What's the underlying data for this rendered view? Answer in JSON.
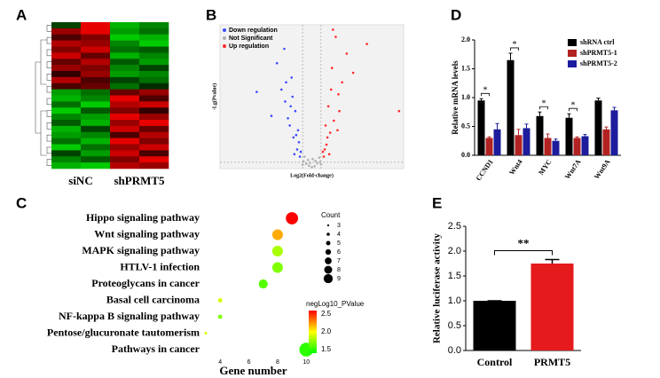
{
  "chart_data": [
    {
      "type": "heatmap",
      "label": "A",
      "column_groups": [
        "siNC",
        "shPRMT5"
      ],
      "low_color": "#00e000",
      "mid_color": "#000000",
      "high_color": "#ff0000",
      "values": [
        [
          -0.3,
          0.9,
          -0.8,
          -0.6
        ],
        [
          0.6,
          0.9,
          -0.7,
          -0.5
        ],
        [
          0.3,
          0.5,
          -0.9,
          -0.8
        ],
        [
          0.7,
          0.6,
          -0.6,
          -0.9
        ],
        [
          0.5,
          0.8,
          -0.5,
          -0.4
        ],
        [
          0.8,
          0.4,
          -0.8,
          -0.6
        ],
        [
          0.4,
          0.7,
          -0.4,
          -0.7
        ],
        [
          0.6,
          0.5,
          -0.6,
          -0.3
        ],
        [
          0.2,
          0.6,
          -0.7,
          -0.6
        ],
        [
          0.7,
          0.3,
          -0.3,
          -0.5
        ],
        [
          0.3,
          0.4,
          -0.5,
          -0.2
        ],
        [
          -0.7,
          -0.5,
          0.4,
          0.6
        ],
        [
          -0.8,
          -0.6,
          0.9,
          0.3
        ],
        [
          -0.5,
          -0.9,
          0.7,
          0.8
        ],
        [
          -0.9,
          -0.4,
          0.5,
          0.2
        ],
        [
          -0.6,
          -0.7,
          0.9,
          0.6
        ],
        [
          -0.4,
          -0.8,
          0.6,
          0.9
        ],
        [
          -0.8,
          -0.3,
          0.8,
          0.4
        ],
        [
          -0.7,
          -0.6,
          0.3,
          0.7
        ],
        [
          -0.5,
          -0.8,
          0.9,
          0.5
        ],
        [
          -0.9,
          -0.5,
          0.6,
          0.8
        ],
        [
          -0.3,
          -0.7,
          0.8,
          0.3
        ],
        [
          -0.6,
          -0.4,
          0.5,
          0.9
        ],
        [
          -0.8,
          -0.9,
          0.7,
          0.6
        ]
      ]
    },
    {
      "type": "volcano",
      "label": "B",
      "xlabel": "Log2(Fold-change)",
      "ylabel": "-Lg(Pvalue)",
      "xlim": [
        -10,
        10
      ],
      "ylim": [
        0,
        30
      ],
      "series": [
        {
          "name": "Down regulation",
          "color": "#3b4bff",
          "x": [
            -1.3,
            -1.6,
            -2.0,
            -2.4,
            -1.8,
            -2.9,
            -3.3,
            -1.4,
            -2.2,
            -3.8,
            -1.9,
            -2.6,
            -1.5,
            -3.0,
            -2.1,
            -1.7,
            -4.4,
            -2.8,
            -1.2,
            -2.3,
            -6.0
          ],
          "y": [
            2.5,
            4.0,
            6.5,
            9.0,
            12.0,
            14.0,
            16.5,
            5.5,
            19.0,
            22.0,
            3.0,
            10.5,
            8.0,
            25.0,
            15.0,
            7.0,
            11.0,
            18.0,
            3.5,
            13.0,
            16.0
          ]
        },
        {
          "name": "Not Significant",
          "color": "#b0b0b0",
          "x": [
            -0.9,
            -0.6,
            -0.3,
            0.0,
            0.3,
            0.6,
            0.9,
            -0.8,
            0.8,
            -0.4,
            0.4,
            -1.0,
            1.0,
            0.1,
            -0.2
          ],
          "y": [
            1.5,
            1.0,
            0.6,
            0.3,
            0.5,
            1.1,
            1.4,
            2.5,
            2.3,
            1.8,
            1.6,
            0.8,
            0.9,
            2.0,
            1.2
          ]
        },
        {
          "name": "Up regulation",
          "color": "#ff2a2a",
          "x": [
            1.3,
            1.6,
            2.0,
            2.4,
            1.8,
            2.9,
            3.3,
            1.4,
            2.2,
            3.8,
            1.9,
            2.6,
            1.5,
            3.0,
            2.1,
            1.7,
            4.5,
            2.8,
            1.2,
            2.3,
            9.5,
            6.0
          ],
          "y": [
            2.5,
            5.0,
            7.5,
            10.0,
            13.0,
            15.5,
            18.0,
            4.0,
            21.0,
            24.0,
            3.0,
            27.5,
            9.0,
            12.0,
            16.5,
            6.5,
            20.0,
            8.0,
            3.5,
            29.0,
            12.0,
            26.0
          ]
        }
      ]
    },
    {
      "type": "dot",
      "label": "C",
      "xlabel": "Gene number",
      "categories": [
        "Hippo signaling pathway",
        "Wnt signaling pathway",
        "MAPK signaling pathway",
        "HTLV-1 infection",
        "Proteoglycans in cancer",
        "Basal cell  carcinoma",
        "NF-kappa B signaling pathway",
        "Pentose/glucuronate tautomerism",
        "Pathways in cancer"
      ],
      "values": [
        9,
        8,
        8,
        8,
        7,
        4,
        4,
        3,
        10
      ],
      "color_values": [
        2.6,
        2.2,
        1.8,
        1.7,
        1.6,
        1.9,
        1.7,
        1.9,
        1.5
      ],
      "xlim": [
        3,
        10.6
      ],
      "xticks": [
        4,
        6,
        8,
        10
      ],
      "size_legend_title": "Count",
      "size_legend": [
        3,
        4,
        5,
        6,
        7,
        8,
        9
      ],
      "color_legend_title": "negLog10_PValue",
      "clim": [
        1.4,
        2.6
      ],
      "colors": [
        "#00ff00",
        "#ffff00",
        "#ff0000"
      ],
      "color_ticks": [
        2.5,
        {
          "value": 2.0,
          "label": "2.0"
        },
        1.5
      ]
    },
    {
      "type": "grouped_bar",
      "label": "D",
      "ylabel": "Relative mRNA levels",
      "categories": [
        "CCND1",
        "Wnt4",
        "MYC",
        "Wnt7A",
        "Wnt9A"
      ],
      "ylim": [
        0,
        2.0
      ],
      "yticks": [
        {
          "value": 0,
          "label": "0.0"
        },
        0.5,
        {
          "value": 1,
          "label": "1.0"
        },
        1.5,
        {
          "value": 2,
          "label": "2.0"
        }
      ],
      "significance_labels": [
        "*",
        "*",
        "*",
        "*",
        null
      ],
      "series": [
        {
          "name": "shRNA ctrl",
          "color": "#000000",
          "values": [
            0.95,
            1.65,
            0.68,
            0.65,
            0.95
          ],
          "errors": [
            0.03,
            0.12,
            0.07,
            0.07,
            0.04
          ]
        },
        {
          "name": "shPRMT5-1",
          "color": "#b22222",
          "values": [
            0.3,
            0.35,
            0.3,
            0.3,
            0.45
          ],
          "errors": [
            0.02,
            0.1,
            0.07,
            0.02,
            0.04
          ]
        },
        {
          "name": "shPRMT5-2",
          "color": "#1c1c9c",
          "values": [
            0.45,
            0.47,
            0.25,
            0.33,
            0.78
          ],
          "errors": [
            0.1,
            0.07,
            0.03,
            0.03,
            0.05
          ]
        }
      ]
    },
    {
      "type": "bar",
      "label": "E",
      "ylabel": "Relative luciferase activity",
      "categories": [
        "Control",
        "PRMT5"
      ],
      "values": [
        1.0,
        1.75
      ],
      "errors": [
        0,
        0.08
      ],
      "colors": [
        "#000000",
        "#e41a1c"
      ],
      "significance_label": "**",
      "ylim": [
        0,
        2.5
      ],
      "yticks": [
        {
          "value": 0,
          "label": "0.0"
        },
        0.5,
        {
          "value": 1,
          "label": "1.0"
        },
        1.5,
        {
          "value": 2,
          "label": "2.0"
        },
        2.5
      ]
    }
  ]
}
